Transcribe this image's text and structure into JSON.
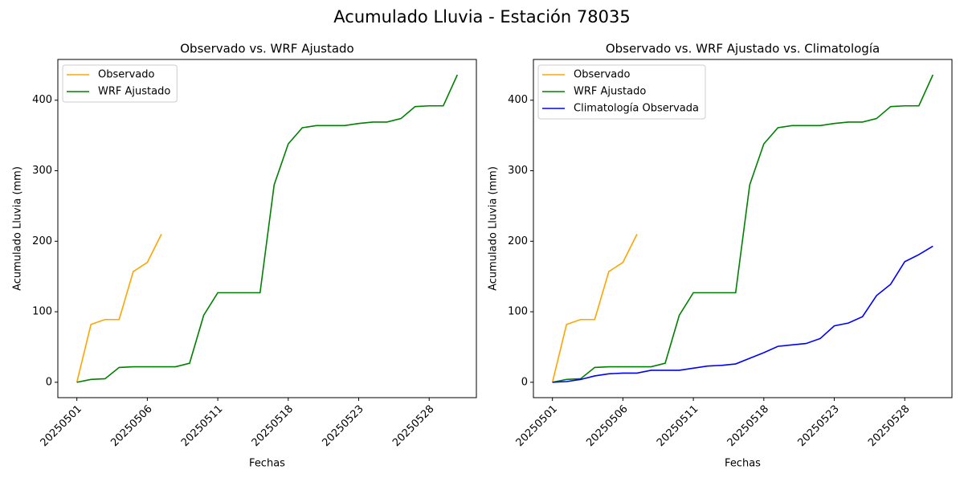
{
  "title": "Acumulado Lluvia - Estación 78035",
  "chart_data": [
    {
      "type": "line",
      "title": "Observado vs. WRF Ajustado",
      "xlabel": "Fechas",
      "ylabel": "Acumulado Lluvia (mm)",
      "categories": [
        "20250501",
        null,
        null,
        null,
        null,
        "20250506",
        null,
        null,
        null,
        null,
        "20250511",
        null,
        null,
        null,
        null,
        "20250518",
        null,
        null,
        null,
        null,
        "20250523",
        null,
        null,
        null,
        null,
        "20250528",
        null,
        null
      ],
      "series": [
        {
          "name": "Observado",
          "color": "#ffa500",
          "values": [
            0,
            82,
            89,
            89,
            157,
            170,
            210,
            null,
            null,
            null,
            null,
            null,
            null,
            null,
            null,
            null,
            null,
            null,
            null,
            null,
            null,
            null,
            null,
            null,
            null,
            null,
            null,
            null
          ]
        },
        {
          "name": "WRF Ajustado",
          "color": "#008000",
          "values": [
            0,
            4,
            5,
            21,
            22,
            22,
            22,
            22,
            27,
            95,
            127,
            127,
            127,
            127,
            280,
            338,
            361,
            364,
            364,
            364,
            367,
            369,
            369,
            374,
            391,
            392,
            392,
            436
          ]
        }
      ],
      "ylim": [
        -21.8,
        457.8
      ],
      "yticks": [
        0,
        100,
        200,
        300,
        400
      ],
      "legend": "upper left"
    },
    {
      "type": "line",
      "title": "Observado vs. WRF Ajustado vs. Climatología",
      "xlabel": "Fechas",
      "ylabel": "Acumulado Lluvia (mm)",
      "categories": [
        "20250501",
        null,
        null,
        null,
        null,
        "20250506",
        null,
        null,
        null,
        null,
        "20250511",
        null,
        null,
        null,
        null,
        "20250518",
        null,
        null,
        null,
        null,
        "20250523",
        null,
        null,
        null,
        null,
        "20250528",
        null,
        null
      ],
      "series": [
        {
          "name": "Observado",
          "color": "#ffa500",
          "values": [
            0,
            82,
            89,
            89,
            157,
            170,
            210,
            null,
            null,
            null,
            null,
            null,
            null,
            null,
            null,
            null,
            null,
            null,
            null,
            null,
            null,
            null,
            null,
            null,
            null,
            null,
            null,
            null
          ]
        },
        {
          "name": "WRF Ajustado",
          "color": "#008000",
          "values": [
            0,
            4,
            5,
            21,
            22,
            22,
            22,
            22,
            27,
            95,
            127,
            127,
            127,
            127,
            280,
            338,
            361,
            364,
            364,
            364,
            367,
            369,
            369,
            374,
            391,
            392,
            392,
            436
          ]
        },
        {
          "name": "Climatología Observada",
          "color": "#0000ff",
          "values": [
            0,
            1,
            4,
            9,
            12,
            13,
            13,
            17,
            17,
            17,
            20,
            23,
            24,
            26,
            34,
            42,
            51,
            53,
            55,
            62,
            80,
            84,
            93,
            123,
            139,
            171,
            181,
            193
          ]
        }
      ],
      "ylim": [
        -21.8,
        457.8
      ],
      "yticks": [
        0,
        100,
        200,
        300,
        400
      ],
      "legend": "upper left"
    }
  ]
}
